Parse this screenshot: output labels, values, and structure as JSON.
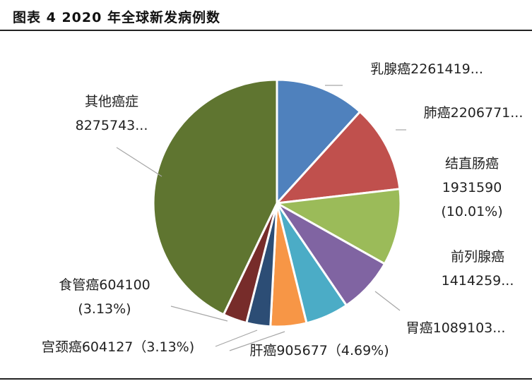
{
  "figure": {
    "title": "图表 4 2020 年全球新发病例数"
  },
  "chart_data": {
    "type": "pie",
    "title": "图表 4 2020 年全球新发病例数",
    "slices": [
      {
        "name": "乳腺癌",
        "value": 2261419,
        "label_lines": [
          "乳腺癌2261419..."
        ],
        "color": "#4f81bd"
      },
      {
        "name": "肺癌",
        "value": 2206771,
        "label_lines": [
          "肺癌2206771..."
        ],
        "color": "#c0504d"
      },
      {
        "name": "结直肠癌",
        "value": 1931590,
        "label_lines": [
          "结直肠癌",
          "1931590",
          "(10.01%)"
        ],
        "color": "#9bbb59"
      },
      {
        "name": "前列腺癌",
        "value": 1414259,
        "label_lines": [
          "前列腺癌",
          "1414259..."
        ],
        "color": "#8064a2"
      },
      {
        "name": "胃癌",
        "value": 1089103,
        "label_lines": [
          "胃癌1089103..."
        ],
        "color": "#4bacc6"
      },
      {
        "name": "肝癌",
        "value": 905677,
        "label_lines": [
          "肝癌905677（4.69%)"
        ],
        "color": "#f79646"
      },
      {
        "name": "宫颈癌",
        "value": 604127,
        "label_lines": [
          "宫颈癌604127（3.13%)"
        ],
        "color": "#2c4d75"
      },
      {
        "name": "食管癌",
        "value": 604100,
        "label_lines": [
          "食管癌604100",
          "(3.13%)"
        ],
        "color": "#772c2a"
      },
      {
        "name": "其他癌症",
        "value": 8275743,
        "label_lines": [
          "其他癌症",
          "8275743..."
        ],
        "color": "#5f7530"
      }
    ]
  }
}
